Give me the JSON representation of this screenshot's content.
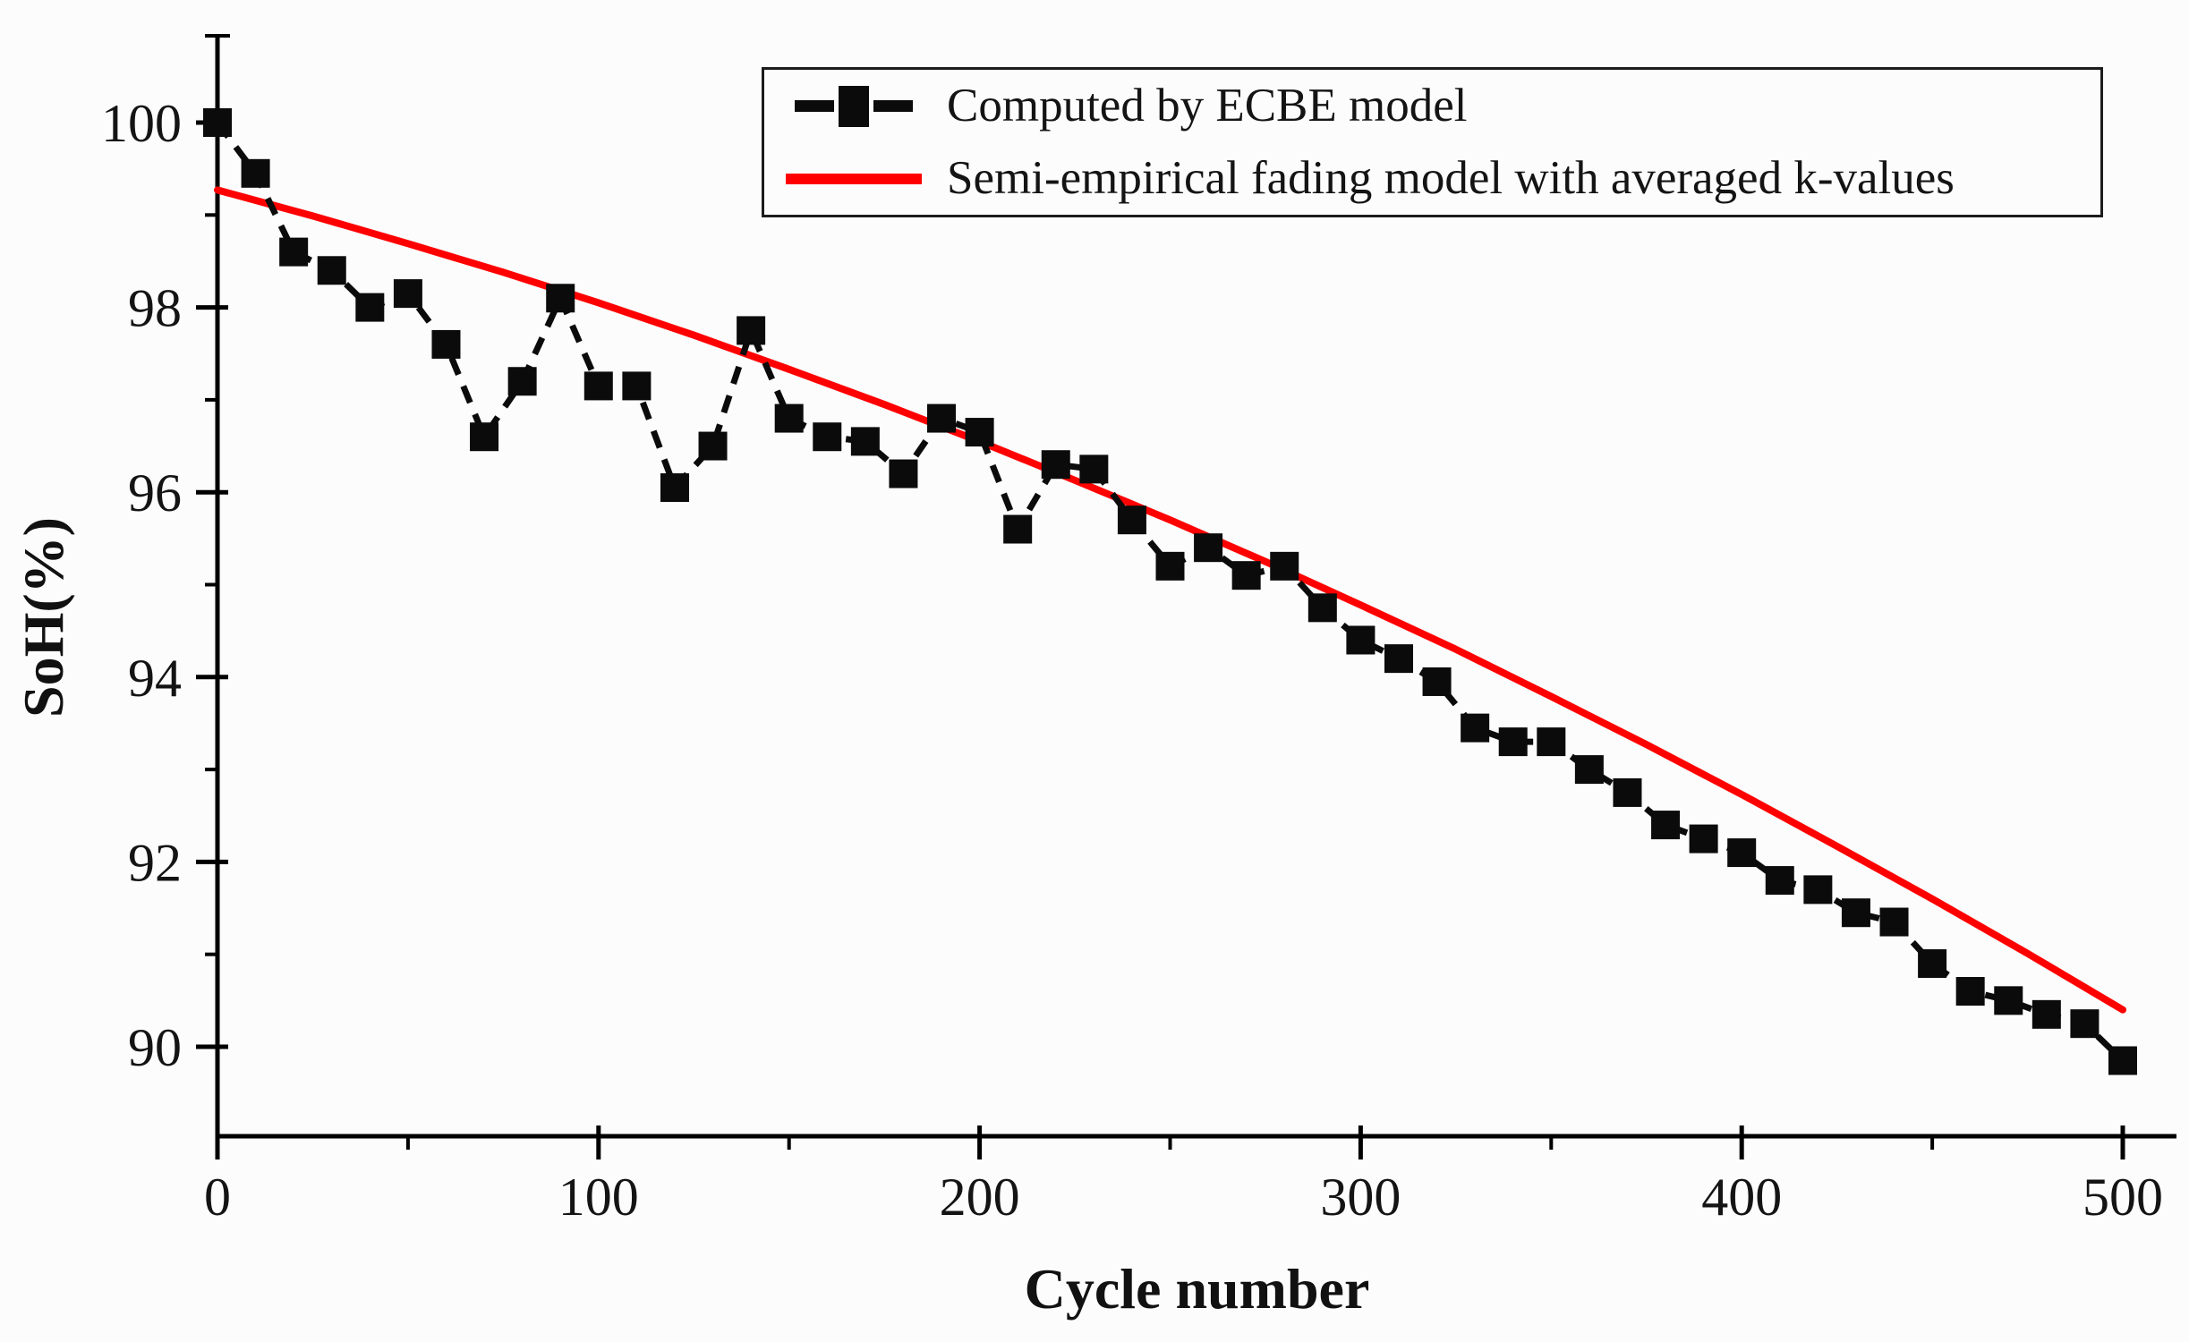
{
  "figure": {
    "background": "#fcfcfc",
    "type_hint": "scientific line chart (battery state-of-health fade vs cycle number)"
  },
  "colors": {
    "ecbe_series": "#0b0b0b",
    "semi_empirical_series": "#ff0000",
    "axis": "#000000",
    "legend_border": "#1c1c1c",
    "text": "#141414"
  },
  "legend": {
    "position": "top-right-box",
    "entries": [
      {
        "label": "Computed by ECBE model",
        "marker": "black-dash-square-dash"
      },
      {
        "label": "Semi-empirical fading model with averaged k-values",
        "marker": "red-solid-line"
      }
    ]
  },
  "chart_data": {
    "type": "line",
    "title": "",
    "xlabel": "Cycle number",
    "ylabel": "SoH(%)",
    "xlim": [
      0,
      514
    ],
    "ylim": [
      89.0,
      100.95
    ],
    "x_ticks": [
      0,
      100,
      200,
      300,
      400,
      500
    ],
    "x_minor_ticks": [
      50,
      150,
      250,
      350,
      450
    ],
    "y_ticks": [
      90,
      92,
      94,
      96,
      98,
      100
    ],
    "y_minor_ticks": [
      91,
      93,
      95,
      97,
      99
    ],
    "grid": "off",
    "legend_position": "top-right",
    "series": [
      {
        "name": "Computed by ECBE model",
        "color": "#0b0b0b",
        "marker": "square",
        "line_style": "dashed",
        "x": [
          0,
          10,
          20,
          30,
          40,
          50,
          60,
          70,
          80,
          90,
          100,
          110,
          120,
          130,
          140,
          150,
          160,
          170,
          180,
          190,
          200,
          210,
          220,
          230,
          240,
          250,
          260,
          270,
          280,
          290,
          300,
          310,
          320,
          330,
          340,
          350,
          360,
          370,
          380,
          390,
          400,
          410,
          420,
          430,
          440,
          450,
          460,
          470,
          480,
          490,
          500
        ],
        "y": [
          100.0,
          99.45,
          98.6,
          98.4,
          98.0,
          98.15,
          97.6,
          96.6,
          97.2,
          98.1,
          97.15,
          97.15,
          96.05,
          96.5,
          97.75,
          96.8,
          96.6,
          96.55,
          96.2,
          96.8,
          96.65,
          95.6,
          96.3,
          96.25,
          95.7,
          95.2,
          95.4,
          95.1,
          95.2,
          94.75,
          94.4,
          94.2,
          93.95,
          93.45,
          93.3,
          93.3,
          93.0,
          92.75,
          92.4,
          92.25,
          92.1,
          91.8,
          91.7,
          91.45,
          91.35,
          90.9,
          90.6,
          90.5,
          90.35,
          90.25,
          89.85
        ]
      },
      {
        "name": "Semi-empirical fading model with averaged k-values",
        "color": "#ff0000",
        "marker": "none",
        "line_style": "solid",
        "x": [
          0,
          25,
          50,
          75,
          100,
          125,
          150,
          175,
          200,
          225,
          250,
          275,
          300,
          325,
          350,
          375,
          400,
          425,
          450,
          475,
          500
        ],
        "y": [
          99.27,
          98.99,
          98.69,
          98.38,
          98.05,
          97.7,
          97.33,
          96.95,
          96.55,
          96.13,
          95.7,
          95.25,
          94.78,
          94.3,
          93.79,
          93.27,
          92.73,
          92.17,
          91.6,
          91.01,
          90.4
        ]
      }
    ]
  }
}
